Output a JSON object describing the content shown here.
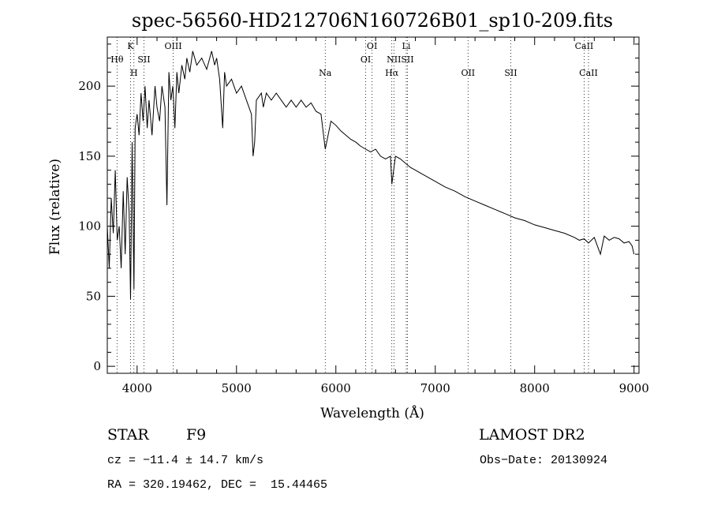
{
  "chart_data": {
    "type": "line",
    "title": "spec-56560-HD212706N160726B01_sp10-209.fits",
    "xlabel": "Wavelength (Å)",
    "ylabel": "Flux (relative)",
    "xlim": [
      3700,
      9050
    ],
    "ylim": [
      -5,
      235
    ],
    "xticks": [
      4000,
      5000,
      6000,
      7000,
      8000,
      9000
    ],
    "yticks": [
      0,
      50,
      100,
      150,
      200
    ],
    "grid": false,
    "series": [
      {
        "x": [
          3700,
          3720,
          3740,
          3760,
          3780,
          3800,
          3820,
          3840,
          3860,
          3880,
          3900,
          3920,
          3934,
          3950,
          3968,
          3980,
          4000,
          4020,
          4040,
          4060,
          4080,
          4102,
          4120,
          4150,
          4180,
          4200,
          4226,
          4250,
          4280,
          4300,
          4320,
          4340,
          4360,
          4380,
          4400,
          4420,
          4450,
          4480,
          4500,
          4530,
          4560,
          4600,
          4650,
          4700,
          4750,
          4780,
          4800,
          4830,
          4861,
          4880,
          4900,
          4950,
          5000,
          5050,
          5100,
          5150,
          5167,
          5183,
          5200,
          5250,
          5270,
          5300,
          5350,
          5400,
          5450,
          5500,
          5550,
          5600,
          5650,
          5700,
          5750,
          5800,
          5850,
          5893,
          5950,
          6000,
          6050,
          6100,
          6150,
          6200,
          6250,
          6300,
          6350,
          6400,
          6450,
          6500,
          6550,
          6563,
          6600,
          6650,
          6700,
          6750,
          6800,
          6850,
          6900,
          6950,
          7000,
          7100,
          7200,
          7300,
          7400,
          7500,
          7600,
          7700,
          7800,
          7900,
          8000,
          8100,
          8200,
          8300,
          8400,
          8450,
          8498,
          8542,
          8600,
          8662,
          8700,
          8750,
          8800,
          8850,
          8900,
          8950,
          8980,
          9000
        ],
        "y": [
          100,
          70,
          120,
          95,
          140,
          90,
          100,
          70,
          125,
          80,
          135,
          110,
          48,
          160,
          55,
          170,
          180,
          165,
          195,
          175,
          200,
          170,
          190,
          165,
          200,
          185,
          175,
          200,
          185,
          115,
          210,
          190,
          200,
          170,
          210,
          195,
          215,
          205,
          220,
          210,
          225,
          215,
          220,
          212,
          225,
          215,
          220,
          205,
          170,
          210,
          200,
          205,
          195,
          200,
          190,
          180,
          150,
          160,
          190,
          195,
          185,
          195,
          190,
          195,
          190,
          185,
          190,
          185,
          190,
          185,
          188,
          182,
          180,
          155,
          175,
          172,
          168,
          165,
          162,
          160,
          157,
          155,
          153,
          155,
          150,
          148,
          150,
          130,
          150,
          148,
          145,
          142,
          140,
          138,
          136,
          134,
          132,
          128,
          125,
          121,
          118,
          115,
          112,
          109,
          106,
          104,
          101,
          99,
          97,
          95,
          92,
          90,
          91,
          88,
          92,
          80,
          93,
          90,
          92,
          91,
          88,
          89,
          86,
          80
        ]
      }
    ],
    "line_markers": [
      {
        "label": "Hθ",
        "wl": 3798,
        "row": "top"
      },
      {
        "label": "K",
        "wl": 3934,
        "row": "topmost"
      },
      {
        "label": "H",
        "wl": 3968,
        "row": "low"
      },
      {
        "label": "SII",
        "wl": 4069,
        "row": "top"
      },
      {
        "label": "OIII",
        "wl": 4363,
        "row": "topmost"
      },
      {
        "label": "Na",
        "wl": 5893,
        "row": "low"
      },
      {
        "label": "OI",
        "wl": 6300,
        "row": "top"
      },
      {
        "label": "OI",
        "wl": 6364,
        "row": "topmost"
      },
      {
        "label": "Hα",
        "wl": 6563,
        "row": "low"
      },
      {
        "label": "NII",
        "wl": 6584,
        "row": "top"
      },
      {
        "label": "Li",
        "wl": 6708,
        "row": "topmost"
      },
      {
        "label": "SII",
        "wl": 6720,
        "row": "top"
      },
      {
        "label": "OII",
        "wl": 7330,
        "row": "low"
      },
      {
        "label": "SII",
        "wl": 7760,
        "row": "low"
      },
      {
        "label": "CaII",
        "wl": 8498,
        "row": "topmost"
      },
      {
        "label": "CaII",
        "wl": 8542,
        "row": "low"
      }
    ]
  },
  "footer": {
    "object_class": "STAR",
    "subclass": "F9",
    "survey": "LAMOST DR2",
    "cz": "cz = −11.4 ± 14.7 km/s",
    "obs_date": "Obs−Date: 20130924",
    "coords": "RA = 320.19462, DEC =  15.44465"
  }
}
